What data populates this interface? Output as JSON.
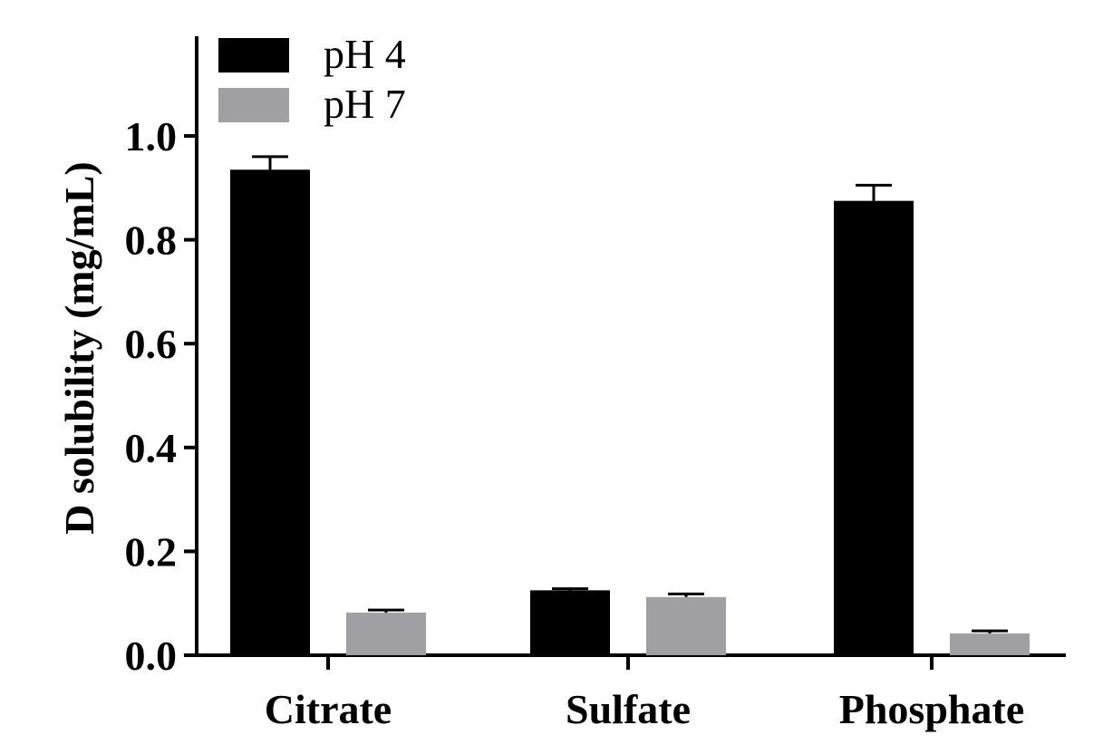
{
  "chart_data": {
    "type": "bar",
    "title": "",
    "xlabel": "",
    "ylabel": "D solubility (mg/mL)",
    "categories": [
      "Citrate",
      "Sulfate",
      "Phosphate"
    ],
    "series": [
      {
        "name": "pH 4",
        "color": "#000000",
        "values": [
          0.935,
          0.125,
          0.875
        ],
        "errors": [
          0.025,
          0.003,
          0.03
        ]
      },
      {
        "name": "pH 7",
        "color": "#a0a0a4",
        "values": [
          0.082,
          0.112,
          0.042
        ],
        "errors": [
          0.005,
          0.006,
          0.005
        ]
      }
    ],
    "ylim": [
      0,
      1.2
    ],
    "yticks": [
      "0.0",
      "0.2",
      "0.4",
      "0.6",
      "0.8",
      "1.0"
    ],
    "grid": false,
    "legend_position": "top-left"
  }
}
